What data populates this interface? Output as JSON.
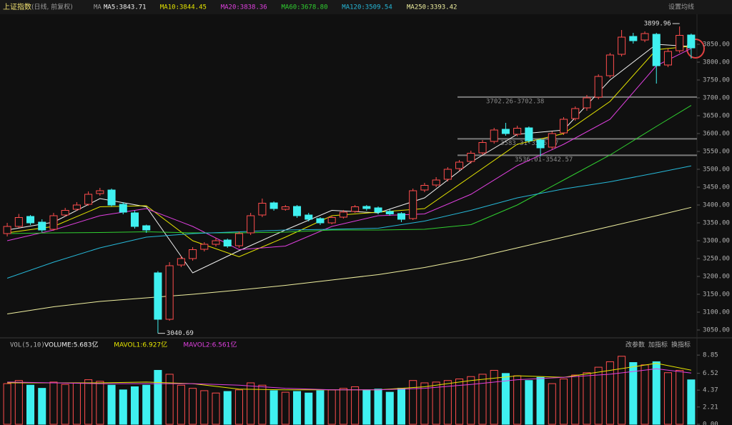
{
  "header": {
    "title": "上证指数",
    "subtitle": "(日线, 前复权)",
    "ma_label": "MA",
    "settings": "设置均线"
  },
  "chart_data": [
    {
      "type": "candlestick",
      "up_color": "#ff4d4d",
      "down_color": "#3ff0f0",
      "open": [
        3320,
        3340,
        3368,
        3352,
        3332,
        3372,
        3388,
        3402,
        3432,
        3442,
        3402,
        3378,
        3342,
        3210,
        3080,
        3232,
        3250,
        3276,
        3290,
        3302,
        3286,
        3322,
        3372,
        3406,
        3388,
        3396,
        3372,
        3362,
        3350,
        3366,
        3382,
        3396,
        3392,
        3382,
        3376,
        3362,
        3442,
        3456,
        3472,
        3502,
        3522,
        3546,
        3578,
        3612,
        3598,
        3616,
        3582,
        3562,
        3602,
        3642,
        3672,
        3702,
        3762,
        3822,
        3872,
        3862,
        3878,
        3792,
        3832,
        3876
      ],
      "high": [
        3350,
        3375,
        3372,
        3360,
        3378,
        3392,
        3408,
        3438,
        3448,
        3446,
        3408,
        3384,
        3345,
        3215,
        3240,
        3258,
        3282,
        3296,
        3308,
        3306,
        3326,
        3378,
        3418,
        3410,
        3400,
        3400,
        3378,
        3366,
        3370,
        3386,
        3400,
        3400,
        3396,
        3388,
        3380,
        3446,
        3462,
        3478,
        3506,
        3526,
        3552,
        3582,
        3616,
        3630,
        3622,
        3620,
        3586,
        3606,
        3646,
        3676,
        3708,
        3766,
        3826,
        3890,
        3882,
        3886,
        3882,
        3838,
        3899.96,
        3880
      ],
      "low": [
        3312,
        3336,
        3344,
        3324,
        3328,
        3368,
        3384,
        3398,
        3426,
        3396,
        3374,
        3334,
        3322,
        3040.69,
        3076,
        3226,
        3244,
        3270,
        3284,
        3280,
        3280,
        3316,
        3366,
        3384,
        3384,
        3364,
        3354,
        3344,
        3346,
        3362,
        3378,
        3384,
        3374,
        3370,
        3352,
        3358,
        3436,
        3450,
        3466,
        3496,
        3516,
        3540,
        3572,
        3594,
        3592,
        3574,
        3536.01,
        3556,
        3596,
        3636,
        3664,
        3696,
        3756,
        3816,
        3852,
        3856,
        3740,
        3786,
        3826,
        3810
      ],
      "close": [
        3340,
        3365,
        3350,
        3330,
        3370,
        3385,
        3400,
        3430,
        3440,
        3400,
        3380,
        3340,
        3330,
        3080,
        3230,
        3250,
        3275,
        3290,
        3300,
        3285,
        3320,
        3370,
        3405,
        3390,
        3395,
        3370,
        3360,
        3350,
        3365,
        3380,
        3395,
        3390,
        3380,
        3375,
        3360,
        3440,
        3455,
        3470,
        3500,
        3520,
        3545,
        3575,
        3610,
        3600,
        3615,
        3580,
        3560,
        3600,
        3640,
        3670,
        3700,
        3760,
        3820,
        3870,
        3860,
        3880,
        3790,
        3830,
        3875,
        3840
      ],
      "ylim": [
        3034,
        3930
      ],
      "yticks": [
        {
          "value": 3050,
          "label": "3050.00"
        },
        {
          "value": 3100,
          "label": "3100.00"
        },
        {
          "value": 3150,
          "label": "3150.00"
        },
        {
          "value": 3200,
          "label": "3200.00"
        },
        {
          "value": 3250,
          "label": "3250.00"
        },
        {
          "value": 3300,
          "label": "3300.00"
        },
        {
          "value": 3350,
          "label": "3350.00"
        },
        {
          "value": 3400,
          "label": "3400.00"
        },
        {
          "value": 3450,
          "label": "3450.00"
        },
        {
          "value": 3500,
          "label": "3500.00"
        },
        {
          "value": 3550,
          "label": "3550.00"
        },
        {
          "value": 3600,
          "label": "3600.00"
        },
        {
          "value": 3650,
          "label": "3650.00"
        },
        {
          "value": 3700,
          "label": "3700.00"
        },
        {
          "value": 3750,
          "label": "3750.00"
        },
        {
          "value": 3800,
          "label": "3800.00"
        },
        {
          "value": 3850,
          "label": "3850.00"
        }
      ],
      "series": [
        {
          "name": "MA5:3843.71",
          "color": "#f2f2f2",
          "x": [
            0,
            4,
            8,
            12,
            16,
            20,
            24,
            28,
            32,
            36,
            40,
            44,
            48,
            52,
            56,
            59
          ],
          "values": [
            3330,
            3352,
            3418,
            3395,
            3210,
            3272,
            3330,
            3385,
            3378,
            3420,
            3520,
            3598,
            3610,
            3750,
            3850,
            3843.71
          ]
        },
        {
          "name": "MA10:3844.45",
          "color": "#e6e600",
          "x": [
            0,
            4,
            8,
            12,
            16,
            20,
            24,
            28,
            32,
            36,
            40,
            44,
            48,
            52,
            56,
            59
          ],
          "values": [
            3322,
            3340,
            3395,
            3398,
            3300,
            3255,
            3310,
            3370,
            3380,
            3390,
            3480,
            3570,
            3600,
            3690,
            3835,
            3844.45
          ]
        },
        {
          "name": "MA20:3838.36",
          "color": "#e040e0",
          "x": [
            0,
            4,
            8,
            12,
            16,
            20,
            24,
            28,
            32,
            36,
            40,
            44,
            48,
            52,
            56,
            59
          ],
          "values": [
            3300,
            3330,
            3370,
            3390,
            3340,
            3275,
            3285,
            3340,
            3370,
            3375,
            3430,
            3510,
            3570,
            3640,
            3790,
            3838.36
          ]
        },
        {
          "name": "MA60:3678.80",
          "color": "#30d030",
          "x": [
            0,
            4,
            8,
            12,
            16,
            20,
            24,
            28,
            32,
            36,
            40,
            44,
            48,
            52,
            56,
            59
          ],
          "values": [
            3320,
            3322,
            3323,
            3325,
            3322,
            3322,
            3324,
            3330,
            3330,
            3332,
            3345,
            3400,
            3470,
            3540,
            3620,
            3678.8
          ]
        },
        {
          "name": "MA120:3509.54",
          "color": "#26b8d8",
          "x": [
            0,
            4,
            8,
            12,
            16,
            20,
            24,
            28,
            32,
            36,
            40,
            44,
            48,
            52,
            56,
            59
          ],
          "values": [
            3195,
            3240,
            3280,
            3310,
            3320,
            3325,
            3330,
            3332,
            3335,
            3355,
            3385,
            3420,
            3445,
            3465,
            3490,
            3509.54
          ]
        },
        {
          "name": "MA250:3393.42",
          "color": "#f0f0a0",
          "x": [
            0,
            4,
            8,
            12,
            16,
            20,
            24,
            28,
            32,
            36,
            40,
            44,
            48,
            52,
            56,
            59
          ],
          "values": [
            3095,
            3115,
            3130,
            3140,
            3150,
            3162,
            3175,
            3190,
            3205,
            3225,
            3250,
            3280,
            3310,
            3340,
            3370,
            3393.42
          ]
        }
      ],
      "annotations": [
        {
          "text": "3702.26-3702.38",
          "level": 3702.32
        },
        {
          "text": "3583.31-3586.97",
          "level": 3585.14
        },
        {
          "text": "3536.01-3542.57",
          "level": 3539.29
        }
      ]
    },
    {
      "type": "bar",
      "title": "VOL(5,10)",
      "buttons": [
        "改参数",
        "加指标",
        "换指标"
      ],
      "ylim": [
        0,
        9.5
      ],
      "yticks": [
        {
          "value": 0,
          "label": "0.00"
        },
        2.21,
        4.37,
        6.52,
        8.85
      ],
      "series": [
        {
          "name": "VOLUME:5.683亿",
          "color": "#f2f2f2",
          "values": [
            5.2,
            5.6,
            5.0,
            4.6,
            5.4,
            5.1,
            5.3,
            5.7,
            5.5,
            5.0,
            4.4,
            4.8,
            5.0,
            6.9,
            6.4,
            5.0,
            4.6,
            4.3,
            4.0,
            4.2,
            4.4,
            5.3,
            5.0,
            4.3,
            4.1,
            4.2,
            4.0,
            4.3,
            4.4,
            4.6,
            4.8,
            4.4,
            4.5,
            4.1,
            4.6,
            5.6,
            5.3,
            5.4,
            5.6,
            5.8,
            6.1,
            6.4,
            6.9,
            6.5,
            6.2,
            5.6,
            6.0,
            5.2,
            5.8,
            6.3,
            6.6,
            7.3,
            8.0,
            8.7,
            7.9,
            7.6,
            8.0,
            6.6,
            6.9,
            5.683
          ]
        },
        {
          "name": "MAVOL1:6.927亿",
          "color": "#e6e600",
          "x": [
            0,
            4,
            8,
            12,
            16,
            20,
            24,
            28,
            32,
            36,
            40,
            44,
            48,
            52,
            56,
            59
          ],
          "values": [
            5.3,
            5.3,
            5.3,
            5.4,
            5.2,
            4.5,
            4.4,
            4.4,
            4.4,
            4.8,
            5.6,
            6.2,
            6.0,
            6.9,
            7.8,
            6.927
          ]
        },
        {
          "name": "MAVOL2:6.561亿",
          "color": "#e040e0",
          "x": [
            0,
            4,
            8,
            12,
            16,
            20,
            24,
            28,
            32,
            36,
            40,
            44,
            48,
            52,
            56,
            59
          ],
          "values": [
            5.4,
            5.3,
            5.2,
            5.2,
            5.2,
            5.0,
            4.6,
            4.4,
            4.4,
            4.6,
            5.1,
            5.7,
            6.0,
            6.4,
            7.1,
            6.561
          ]
        }
      ]
    }
  ]
}
